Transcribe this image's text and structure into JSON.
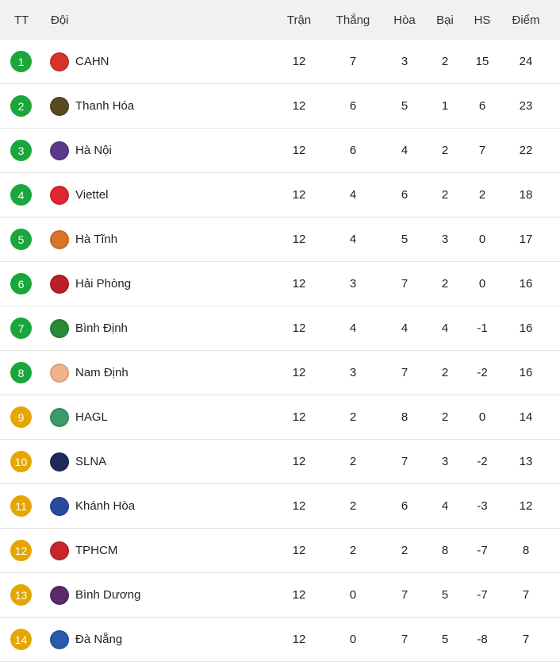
{
  "headers": {
    "rank": "TT",
    "team": "Đội",
    "played": "Trận",
    "won": "Thắng",
    "drawn": "Hòa",
    "lost": "Bại",
    "gd": "HS",
    "points": "Điểm"
  },
  "colors": {
    "top": "#1aa63a",
    "mid": "#e6a600"
  },
  "rows": [
    {
      "rank": "1",
      "team": "CAHN",
      "played": "12",
      "won": "7",
      "drawn": "3",
      "lost": "2",
      "gd": "15",
      "points": "24",
      "zone": "top",
      "logo": "#d8332a"
    },
    {
      "rank": "2",
      "team": "Thanh Hóa",
      "played": "12",
      "won": "6",
      "drawn": "5",
      "lost": "1",
      "gd": "6",
      "points": "23",
      "zone": "top",
      "logo": "#5a4a20"
    },
    {
      "rank": "3",
      "team": "Hà Nội",
      "played": "12",
      "won": "6",
      "drawn": "4",
      "lost": "2",
      "gd": "7",
      "points": "22",
      "zone": "top",
      "logo": "#5b3a8c"
    },
    {
      "rank": "4",
      "team": "Viettel",
      "played": "12",
      "won": "4",
      "drawn": "6",
      "lost": "2",
      "gd": "2",
      "points": "18",
      "zone": "top",
      "logo": "#e0262f"
    },
    {
      "rank": "5",
      "team": "Hà Tĩnh",
      "played": "12",
      "won": "4",
      "drawn": "5",
      "lost": "3",
      "gd": "0",
      "points": "17",
      "zone": "top",
      "logo": "#d9742a"
    },
    {
      "rank": "6",
      "team": "Hải Phòng",
      "played": "12",
      "won": "3",
      "drawn": "7",
      "lost": "2",
      "gd": "0",
      "points": "16",
      "zone": "top",
      "logo": "#b8212a"
    },
    {
      "rank": "7",
      "team": "Bình Định",
      "played": "12",
      "won": "4",
      "drawn": "4",
      "lost": "4",
      "gd": "-1",
      "points": "16",
      "zone": "top",
      "logo": "#2a8a3a"
    },
    {
      "rank": "8",
      "team": "Nam Định",
      "played": "12",
      "won": "3",
      "drawn": "7",
      "lost": "2",
      "gd": "-2",
      "points": "16",
      "zone": "top",
      "logo": "#f2b38a"
    },
    {
      "rank": "9",
      "team": "HAGL",
      "played": "12",
      "won": "2",
      "drawn": "8",
      "lost": "2",
      "gd": "0",
      "points": "14",
      "zone": "mid",
      "logo": "#3a9a6a"
    },
    {
      "rank": "10",
      "team": "SLNA",
      "played": "12",
      "won": "2",
      "drawn": "7",
      "lost": "3",
      "gd": "-2",
      "points": "13",
      "zone": "mid",
      "logo": "#1e2a5a"
    },
    {
      "rank": "11",
      "team": "Khánh Hòa",
      "played": "12",
      "won": "2",
      "drawn": "6",
      "lost": "4",
      "gd": "-3",
      "points": "12",
      "zone": "mid",
      "logo": "#2a4aa0"
    },
    {
      "rank": "12",
      "team": "TPHCM",
      "played": "12",
      "won": "2",
      "drawn": "2",
      "lost": "8",
      "gd": "-7",
      "points": "8",
      "zone": "mid",
      "logo": "#c8262c"
    },
    {
      "rank": "13",
      "team": "Bình Dương",
      "played": "12",
      "won": "0",
      "drawn": "7",
      "lost": "5",
      "gd": "-7",
      "points": "7",
      "zone": "mid",
      "logo": "#5a2a6a"
    },
    {
      "rank": "14",
      "team": "Đà Nẵng",
      "played": "12",
      "won": "0",
      "drawn": "7",
      "lost": "5",
      "gd": "-8",
      "points": "7",
      "zone": "mid",
      "logo": "#2a5ab0"
    }
  ]
}
